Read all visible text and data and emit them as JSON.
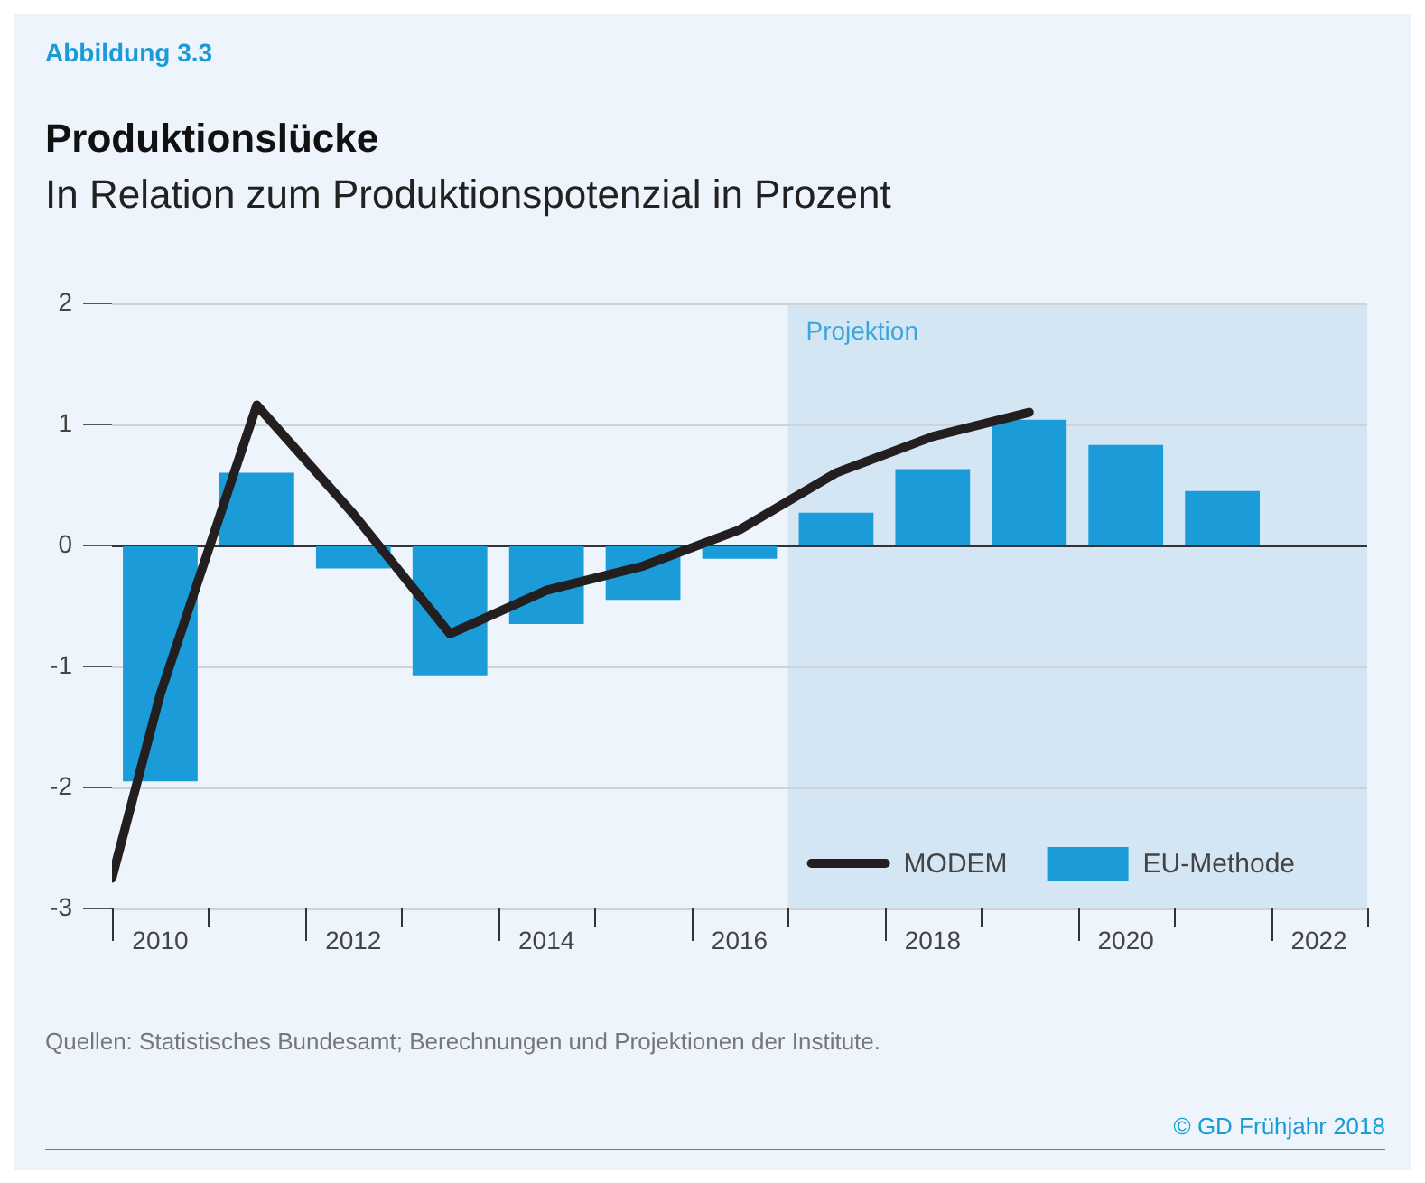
{
  "chart_data": {
    "type": "bar",
    "title": "Produktionslücke",
    "subtitle": "In Relation zum Produktionspotenzial in Prozent",
    "annotations": [
      "Abbildung 3.3",
      "Quellen: Statistisches Bundesamt; Berechnungen und Projektionen der Institute.",
      "© GD Frühjahr 2018"
    ],
    "x": [
      2010,
      2011,
      2012,
      2013,
      2014,
      2015,
      2016,
      2017,
      2018,
      2019,
      2020,
      2021
    ],
    "series": [
      {
        "name": "MODEM",
        "type": "line",
        "color": "#231f20",
        "x": [
          2009.5,
          2010,
          2011,
          2012,
          2013,
          2014,
          2015,
          2016,
          2017,
          2018,
          2019
        ],
        "values": [
          -2.75,
          -1.23,
          1.16,
          0.26,
          -0.73,
          -0.37,
          -0.17,
          0.13,
          0.6,
          0.9,
          1.1
        ]
      },
      {
        "name": "EU-Methode",
        "color": "#1b9bd7",
        "values": [
          -1.95,
          0.6,
          -0.19,
          -1.08,
          -0.65,
          -0.45,
          -0.11,
          0.27,
          0.63,
          1.04,
          0.83,
          0.45
        ]
      }
    ],
    "xlim": [
      2009.5,
      2022.5
    ],
    "xticks": [
      2010,
      2012,
      2014,
      2016,
      2018,
      2020,
      2022
    ],
    "ylim": [
      -3,
      2
    ],
    "yticks": [
      -3,
      -2,
      -1,
      0,
      1,
      2
    ],
    "bands": [
      {
        "axis": "x",
        "from": 2016.5,
        "to": 2022.5,
        "label": "Projektion",
        "color": "#d4e5f4"
      }
    ],
    "grid": "y",
    "legend": "bottom right",
    "marker": "none"
  }
}
